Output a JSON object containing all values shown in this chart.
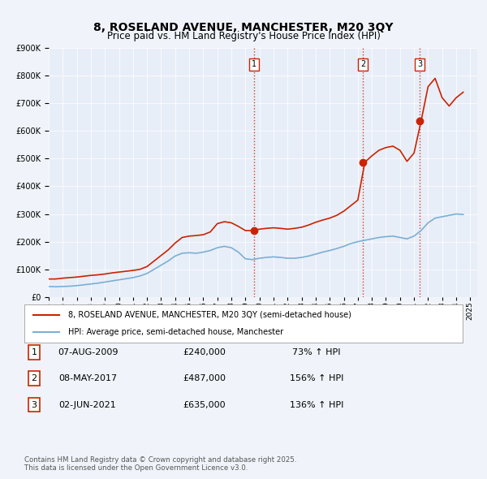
{
  "title": "8, ROSELAND AVENUE, MANCHESTER, M20 3QY",
  "subtitle": "Price paid vs. HM Land Registry's House Price Index (HPI)",
  "title_fontsize": 11,
  "subtitle_fontsize": 9,
  "bg_color": "#f0f4fa",
  "plot_bg_color": "#e8eef8",
  "red_color": "#cc2200",
  "blue_color": "#7ab0d4",
  "ylim": [
    0,
    900000
  ],
  "xlim_start": 1995,
  "xlim_end": 2025.5,
  "sale_markers": [
    {
      "label": "1",
      "date": 2009.6,
      "price": 240000
    },
    {
      "label": "2",
      "date": 2017.35,
      "price": 487000
    },
    {
      "label": "3",
      "date": 2021.42,
      "price": 635000
    }
  ],
  "table_rows": [
    {
      "num": "1",
      "date": "07-AUG-2009",
      "price": "£240,000",
      "change": "73% ↑ HPI"
    },
    {
      "num": "2",
      "date": "08-MAY-2017",
      "price": "£487,000",
      "change": "156% ↑ HPI"
    },
    {
      "num": "3",
      "date": "02-JUN-2021",
      "price": "£635,000",
      "change": "136% ↑ HPI"
    }
  ],
  "legend_entries": [
    "8, ROSELAND AVENUE, MANCHESTER, M20 3QY (semi-detached house)",
    "HPI: Average price, semi-detached house, Manchester"
  ],
  "footer_text": "Contains HM Land Registry data © Crown copyright and database right 2025.\nThis data is licensed under the Open Government Licence v3.0.",
  "hpi_red_data": {
    "years": [
      1995.0,
      1995.5,
      1996.0,
      1996.5,
      1997.0,
      1997.5,
      1998.0,
      1998.5,
      1999.0,
      1999.5,
      2000.0,
      2000.5,
      2001.0,
      2001.5,
      2002.0,
      2002.5,
      2003.0,
      2003.5,
      2004.0,
      2004.5,
      2005.0,
      2005.5,
      2006.0,
      2006.5,
      2007.0,
      2007.5,
      2008.0,
      2008.5,
      2009.0,
      2009.5,
      2010.0,
      2010.5,
      2011.0,
      2011.5,
      2012.0,
      2012.5,
      2013.0,
      2013.5,
      2014.0,
      2014.5,
      2015.0,
      2015.5,
      2016.0,
      2016.5,
      2017.0,
      2017.5,
      2018.0,
      2018.5,
      2019.0,
      2019.5,
      2020.0,
      2020.5,
      2021.0,
      2021.5,
      2022.0,
      2022.5,
      2023.0,
      2023.5,
      2024.0,
      2024.5
    ],
    "values": [
      65000,
      65000,
      68000,
      70000,
      72000,
      75000,
      78000,
      80000,
      83000,
      87000,
      90000,
      93000,
      96000,
      100000,
      110000,
      130000,
      150000,
      170000,
      195000,
      215000,
      220000,
      222000,
      225000,
      235000,
      265000,
      272000,
      268000,
      255000,
      240000,
      240000,
      245000,
      248000,
      250000,
      248000,
      245000,
      248000,
      252000,
      260000,
      270000,
      278000,
      285000,
      295000,
      310000,
      330000,
      350000,
      487000,
      510000,
      530000,
      540000,
      545000,
      530000,
      490000,
      520000,
      635000,
      760000,
      790000,
      720000,
      690000,
      720000,
      740000
    ]
  },
  "hpi_blue_data": {
    "years": [
      1995.0,
      1995.5,
      1996.0,
      1996.5,
      1997.0,
      1997.5,
      1998.0,
      1998.5,
      1999.0,
      1999.5,
      2000.0,
      2000.5,
      2001.0,
      2001.5,
      2002.0,
      2002.5,
      2003.0,
      2003.5,
      2004.0,
      2004.5,
      2005.0,
      2005.5,
      2006.0,
      2006.5,
      2007.0,
      2007.5,
      2008.0,
      2008.5,
      2009.0,
      2009.5,
      2010.0,
      2010.5,
      2011.0,
      2011.5,
      2012.0,
      2012.5,
      2013.0,
      2013.5,
      2014.0,
      2014.5,
      2015.0,
      2015.5,
      2016.0,
      2016.5,
      2017.0,
      2017.5,
      2018.0,
      2018.5,
      2019.0,
      2019.5,
      2020.0,
      2020.5,
      2021.0,
      2021.5,
      2022.0,
      2022.5,
      2023.0,
      2023.5,
      2024.0,
      2024.5
    ],
    "values": [
      38000,
      37000,
      38000,
      39000,
      41000,
      44000,
      47000,
      50000,
      54000,
      58000,
      62000,
      66000,
      70000,
      76000,
      85000,
      100000,
      115000,
      130000,
      148000,
      158000,
      160000,
      158000,
      162000,
      168000,
      178000,
      183000,
      178000,
      162000,
      138000,
      135000,
      140000,
      143000,
      145000,
      143000,
      140000,
      140000,
      143000,
      148000,
      155000,
      162000,
      168000,
      175000,
      183000,
      193000,
      200000,
      205000,
      210000,
      215000,
      218000,
      220000,
      215000,
      210000,
      220000,
      240000,
      268000,
      285000,
      290000,
      295000,
      300000,
      298000
    ]
  }
}
